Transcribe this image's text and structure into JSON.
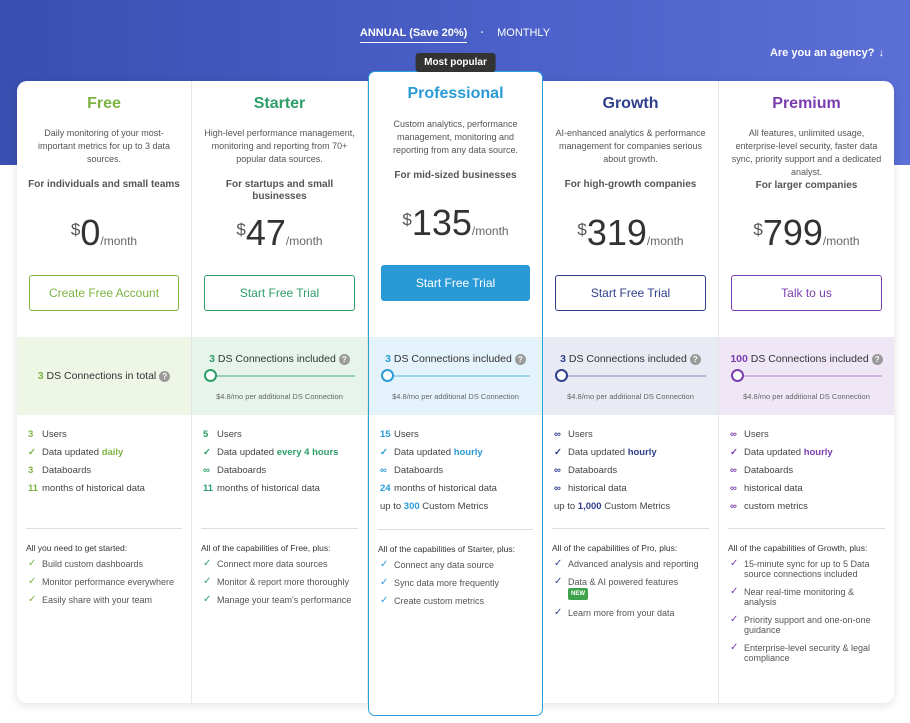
{
  "billing": {
    "annual_label": "ANNUAL (Save 20%)",
    "separator": "·",
    "monthly_label": "MONTHLY"
  },
  "agency": {
    "label": "Are you an agency?",
    "icon": "arrow-down-icon"
  },
  "colors": {
    "free": "#7cb342",
    "starter": "#2e9e68",
    "professional": "#2a9ad6",
    "growth": "#2f3f8c",
    "premium": "#7a3db0"
  },
  "plans": [
    {
      "name": "Free",
      "badge": "",
      "description": "Daily monitoring of your most-important metrics for up to 3 data sources.",
      "audience": "For individuals and small teams",
      "currency": "$",
      "amount": "0",
      "period": "/month",
      "cta": "Create Free Account",
      "connections": {
        "count": "3",
        "text": "DS Connections in total",
        "help": "?",
        "extra": ""
      },
      "features": [
        {
          "pre": "3",
          "text": "Users",
          "highlight": ""
        },
        {
          "pre": "✓",
          "text": "Data updated",
          "highlight": "daily"
        },
        {
          "pre": "3",
          "text": "Databoards",
          "highlight": ""
        },
        {
          "pre": "11",
          "text": "months of historical data",
          "highlight": ""
        }
      ],
      "caps_title": "All you need to get started:",
      "caps": [
        "Build custom dashboards",
        "Monitor performance everywhere",
        "Easily share with your team"
      ]
    },
    {
      "name": "Starter",
      "badge": "",
      "description": "High-level performance management, monitoring and reporting from 70+ popular data sources.",
      "audience": "For startups and small businesses",
      "currency": "$",
      "amount": "47",
      "period": "/month",
      "cta": "Start Free Trial",
      "connections": {
        "count": "3",
        "text": "DS Connections included",
        "help": "?",
        "extra": "$4.8/mo per additional DS Connection"
      },
      "features": [
        {
          "pre": "5",
          "text": "Users",
          "highlight": ""
        },
        {
          "pre": "✓",
          "text": "Data updated",
          "highlight": "every 4 hours"
        },
        {
          "pre": "∞",
          "text": "Databoards",
          "highlight": ""
        },
        {
          "pre": "11",
          "text": "months of historical data",
          "highlight": ""
        }
      ],
      "caps_title": "All of the capabilities of Free, plus:",
      "caps": [
        "Connect more data sources",
        "Monitor & report more thoroughly",
        "Manage your team's performance"
      ]
    },
    {
      "name": "Professional",
      "badge": "Most popular",
      "description": "Custom analytics, performance management, monitoring and reporting from any data source.",
      "audience": "For mid-sized businesses",
      "currency": "$",
      "amount": "135",
      "period": "/month",
      "cta": "Start Free Trial",
      "connections": {
        "count": "3",
        "text": "DS Connections included",
        "help": "?",
        "extra": "$4.8/mo per additional DS Connection"
      },
      "features": [
        {
          "pre": "15",
          "text": "Users",
          "highlight": ""
        },
        {
          "pre": "✓",
          "text": "Data updated",
          "highlight": "hourly"
        },
        {
          "pre": "∞",
          "text": "Databoards",
          "highlight": ""
        },
        {
          "pre": "24",
          "text": "months of historical data",
          "highlight": ""
        },
        {
          "pre": "up to",
          "mid": "300",
          "text": "Custom Metrics",
          "highlight": ""
        }
      ],
      "caps_title": "All of the capabilities of Starter, plus:",
      "caps": [
        "Connect any data source",
        "Sync data more frequently",
        "Create custom metrics"
      ]
    },
    {
      "name": "Growth",
      "badge": "",
      "description": "AI-enhanced analytics & performance management for companies serious about growth.",
      "audience": "For high-growth companies",
      "currency": "$",
      "amount": "319",
      "period": "/month",
      "cta": "Start Free Trial",
      "connections": {
        "count": "3",
        "text": "DS Connections included",
        "help": "?",
        "extra": "$4.8/mo per additional DS Connection"
      },
      "features": [
        {
          "pre": "∞",
          "text": "Users",
          "highlight": ""
        },
        {
          "pre": "✓",
          "text": "Data updated",
          "highlight": "hourly"
        },
        {
          "pre": "∞",
          "text": "Databoards",
          "highlight": ""
        },
        {
          "pre": "∞",
          "text": "historical data",
          "highlight": ""
        },
        {
          "pre": "up to",
          "mid": "1,000",
          "text": "Custom Metrics",
          "highlight": ""
        }
      ],
      "caps_title": "All of the capabilities of Pro, plus:",
      "caps": [
        "Advanced analysis and reporting",
        "Data & AI powered features",
        "Learn more from your data"
      ],
      "new_badge": "NEW"
    },
    {
      "name": "Premium",
      "badge": "",
      "description": "All features, unlimited usage, enterprise-level security, faster data sync, priority support and a dedicated analyst.",
      "audience": "For larger companies",
      "currency": "$",
      "amount": "799",
      "period": "/month",
      "cta": "Talk to us",
      "connections": {
        "count": "100",
        "text": "DS Connections included",
        "help": "?",
        "extra": "$4.8/mo per additional DS Connection"
      },
      "features": [
        {
          "pre": "∞",
          "text": "Users",
          "highlight": ""
        },
        {
          "pre": "✓",
          "text": "Data updated",
          "highlight": "hourly"
        },
        {
          "pre": "∞",
          "text": "Databoards",
          "highlight": ""
        },
        {
          "pre": "∞",
          "text": "historical data",
          "highlight": ""
        },
        {
          "pre": "∞",
          "text": "custom metrics",
          "highlight": ""
        }
      ],
      "caps_title": "All of the capabilities of Growth, plus:",
      "caps": [
        "15-minute sync for up to 5 Data source connections included",
        "Near real-time monitoring & analysis",
        "Priority support and one-on-one guidance",
        "Enterprise-level security & legal compliance"
      ]
    }
  ]
}
